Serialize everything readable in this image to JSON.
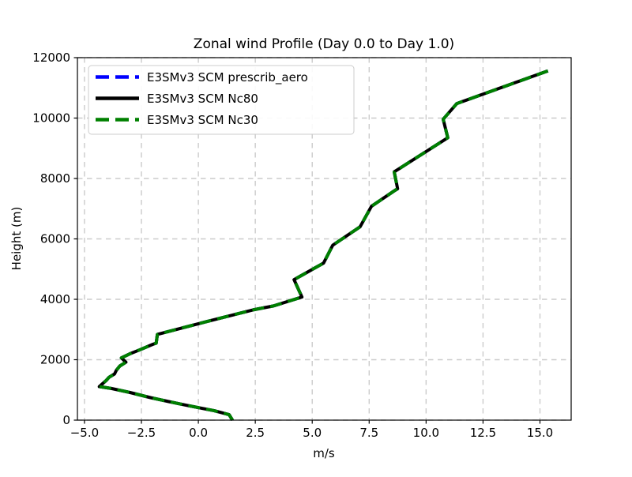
{
  "figure": {
    "background": "#ffffff"
  },
  "chart_data": {
    "type": "line",
    "title": "Zonal wind Profile (Day 0.0 to Day 1.0)",
    "xlabel": "m/s",
    "ylabel": "Height (m)",
    "xlim": [
      -5.31,
      16.37
    ],
    "ylim": [
      0,
      12000
    ],
    "x_ticks": [
      -5.0,
      -2.5,
      0.0,
      2.5,
      5.0,
      7.5,
      10.0,
      12.5,
      15.0
    ],
    "x_tick_labels": [
      "−5.0",
      "−2.5",
      "0.0",
      "2.5",
      "5.0",
      "7.5",
      "10.0",
      "12.5",
      "15.0"
    ],
    "y_ticks": [
      0,
      2000,
      4000,
      6000,
      8000,
      10000,
      12000
    ],
    "y_tick_labels": [
      "0",
      "2000",
      "4000",
      "6000",
      "8000",
      "10000",
      "12000"
    ],
    "grid": true,
    "grid_color": "#cbcbcb",
    "legend_position": "upper left",
    "note": "All three series overlap exactly; only the topmost green dashed line over the black solid line is visible in the plot.",
    "height_m": [
      0,
      180,
      310,
      400,
      490,
      615,
      745,
      915,
      1045,
      1110,
      1310,
      1420,
      1530,
      1650,
      1790,
      1920,
      2060,
      2200,
      2320,
      2510,
      2550,
      2840,
      3250,
      3650,
      3780,
      4075,
      4650,
      5200,
      5790,
      6400,
      7080,
      7590,
      7660,
      8220,
      9350,
      9960,
      10480,
      11560
    ],
    "series": [
      {
        "name": "E3SMv3 SCM prescrib_aero",
        "color": "#0000ff",
        "line_style": "dashed",
        "u_ms": [
          1.5,
          1.35,
          0.7,
          0.1,
          -0.5,
          -1.3,
          -2.1,
          -3.0,
          -3.8,
          -4.35,
          -4.05,
          -3.92,
          -3.68,
          -3.6,
          -3.45,
          -3.18,
          -3.38,
          -3.0,
          -2.6,
          -2.0,
          -1.85,
          -1.8,
          0.3,
          2.4,
          3.3,
          4.55,
          4.2,
          5.5,
          5.9,
          7.1,
          7.6,
          8.6,
          8.75,
          8.6,
          10.95,
          10.75,
          11.35,
          15.35
        ]
      },
      {
        "name": "E3SMv3 SCM Nc80",
        "color": "#000000",
        "line_style": "solid",
        "u_ms": [
          1.5,
          1.35,
          0.7,
          0.1,
          -0.5,
          -1.3,
          -2.1,
          -3.0,
          -3.8,
          -4.35,
          -4.05,
          -3.92,
          -3.68,
          -3.6,
          -3.45,
          -3.18,
          -3.38,
          -3.0,
          -2.6,
          -2.0,
          -1.85,
          -1.8,
          0.3,
          2.4,
          3.3,
          4.55,
          4.2,
          5.5,
          5.9,
          7.1,
          7.6,
          8.6,
          8.75,
          8.6,
          10.95,
          10.75,
          11.35,
          15.35
        ]
      },
      {
        "name": "E3SMv3 SCM Nc30",
        "color": "#008000",
        "line_style": "dashed",
        "u_ms": [
          1.5,
          1.35,
          0.7,
          0.1,
          -0.5,
          -1.3,
          -2.1,
          -3.0,
          -3.8,
          -4.35,
          -4.05,
          -3.92,
          -3.68,
          -3.6,
          -3.45,
          -3.18,
          -3.38,
          -3.0,
          -2.6,
          -2.0,
          -1.85,
          -1.8,
          0.3,
          2.4,
          3.3,
          4.55,
          4.2,
          5.5,
          5.9,
          7.1,
          7.6,
          8.6,
          8.75,
          8.6,
          10.95,
          10.75,
          11.35,
          15.35
        ]
      }
    ]
  }
}
